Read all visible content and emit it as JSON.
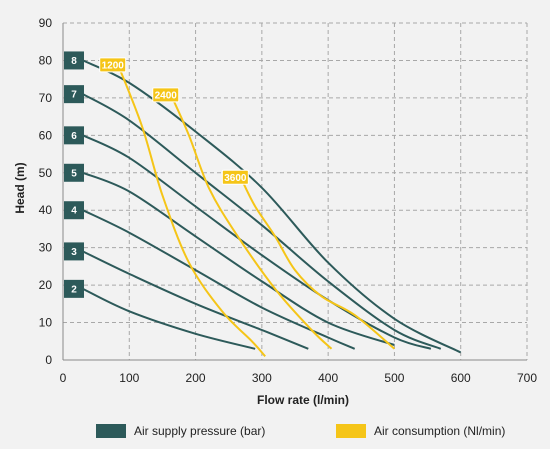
{
  "chart_data": {
    "type": "line",
    "title": "",
    "xlabel": "Flow rate (l/min)",
    "ylabel": "Head (m)",
    "xlim": [
      0,
      700
    ],
    "ylim": [
      0,
      90
    ],
    "xticks": [
      "0",
      "100",
      "200",
      "300",
      "400",
      "500",
      "600",
      "700"
    ],
    "yticks": [
      "0",
      "10",
      "20",
      "30",
      "40",
      "50",
      "60",
      "70",
      "80",
      "90"
    ],
    "grid": true,
    "pressure_color": "#2d5a5a",
    "air_color": "#f5c518",
    "pressure_series": [
      {
        "name": "8",
        "points": [
          [
            30,
            80
          ],
          [
            100,
            74
          ],
          [
            200,
            61
          ],
          [
            300,
            46
          ],
          [
            400,
            26
          ],
          [
            500,
            11
          ],
          [
            600,
            2
          ]
        ]
      },
      {
        "name": "7",
        "points": [
          [
            30,
            71
          ],
          [
            100,
            64
          ],
          [
            200,
            50
          ],
          [
            300,
            36
          ],
          [
            400,
            21
          ],
          [
            500,
            8
          ],
          [
            570,
            3
          ]
        ]
      },
      {
        "name": "6",
        "points": [
          [
            30,
            60
          ],
          [
            100,
            54
          ],
          [
            200,
            41
          ],
          [
            300,
            28
          ],
          [
            400,
            16
          ],
          [
            500,
            6
          ],
          [
            555,
            3
          ]
        ]
      },
      {
        "name": "5",
        "points": [
          [
            30,
            50
          ],
          [
            100,
            45
          ],
          [
            200,
            33
          ],
          [
            300,
            21
          ],
          [
            400,
            10
          ],
          [
            500,
            4
          ]
        ]
      },
      {
        "name": "4",
        "points": [
          [
            30,
            40
          ],
          [
            100,
            34
          ],
          [
            200,
            24
          ],
          [
            300,
            14
          ],
          [
            400,
            6
          ],
          [
            440,
            3
          ]
        ]
      },
      {
        "name": "3",
        "points": [
          [
            30,
            29
          ],
          [
            100,
            23
          ],
          [
            200,
            15
          ],
          [
            300,
            8
          ],
          [
            370,
            3
          ]
        ]
      },
      {
        "name": "2",
        "points": [
          [
            30,
            19
          ],
          [
            100,
            13
          ],
          [
            200,
            7
          ],
          [
            290,
            3
          ]
        ]
      }
    ],
    "air_series": [
      {
        "name": "1200",
        "points": [
          [
            85,
            78
          ],
          [
            120,
            62
          ],
          [
            150,
            44
          ],
          [
            190,
            26
          ],
          [
            240,
            13
          ],
          [
            285,
            5
          ],
          [
            305,
            1
          ]
        ]
      },
      {
        "name": "2400",
        "points": [
          [
            165,
            70
          ],
          [
            190,
            60
          ],
          [
            220,
            46
          ],
          [
            260,
            34
          ],
          [
            320,
            19
          ],
          [
            375,
            8
          ],
          [
            405,
            3
          ]
        ]
      },
      {
        "name": "3600",
        "points": [
          [
            270,
            48
          ],
          [
            290,
            41
          ],
          [
            320,
            33
          ],
          [
            350,
            24
          ],
          [
            390,
            17
          ],
          [
            440,
            12
          ],
          [
            500,
            3
          ]
        ]
      }
    ],
    "legend": {
      "pressure_label": "Air supply pressure (bar)",
      "air_label": "Air consumption (Nl/min)",
      "placement": "bottom"
    }
  }
}
